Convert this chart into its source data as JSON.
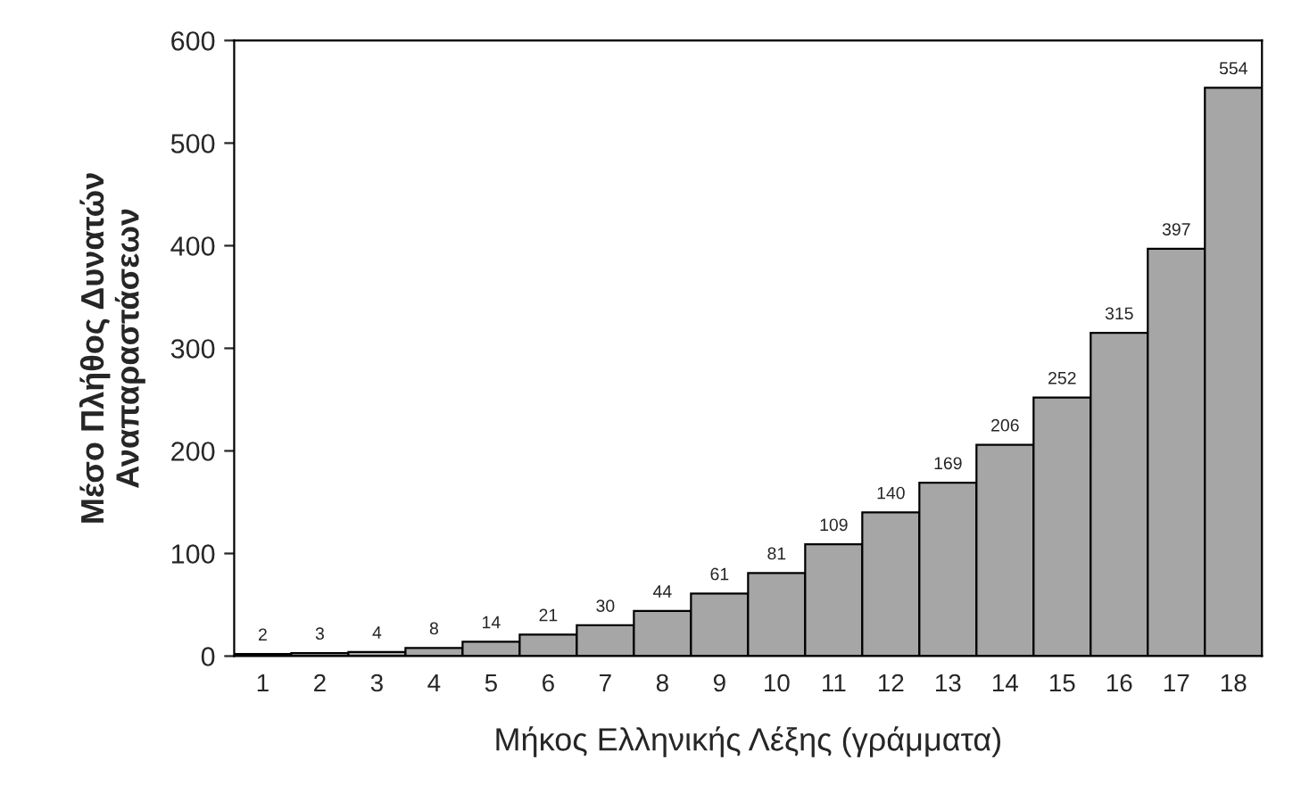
{
  "chart_data": {
    "type": "bar",
    "xlabel": "Μήκος Ελληνικής Λέξης (γράμματα)",
    "ylabel": "Μέσο Πλήθος Δυνατών\nΑναπαραστάσεων",
    "categories": [
      "1",
      "2",
      "3",
      "4",
      "5",
      "6",
      "7",
      "8",
      "9",
      "10",
      "11",
      "12",
      "13",
      "14",
      "15",
      "16",
      "17",
      "18"
    ],
    "values": [
      2,
      3,
      4,
      8,
      14,
      21,
      30,
      44,
      61,
      81,
      109,
      140,
      169,
      206,
      252,
      315,
      397,
      554
    ],
    "color": "#a6a6a6",
    "ylim": [
      0,
      600
    ],
    "yticks": [
      0,
      100,
      200,
      300,
      400,
      500,
      600
    ],
    "grid": false,
    "data_labels": true
  }
}
